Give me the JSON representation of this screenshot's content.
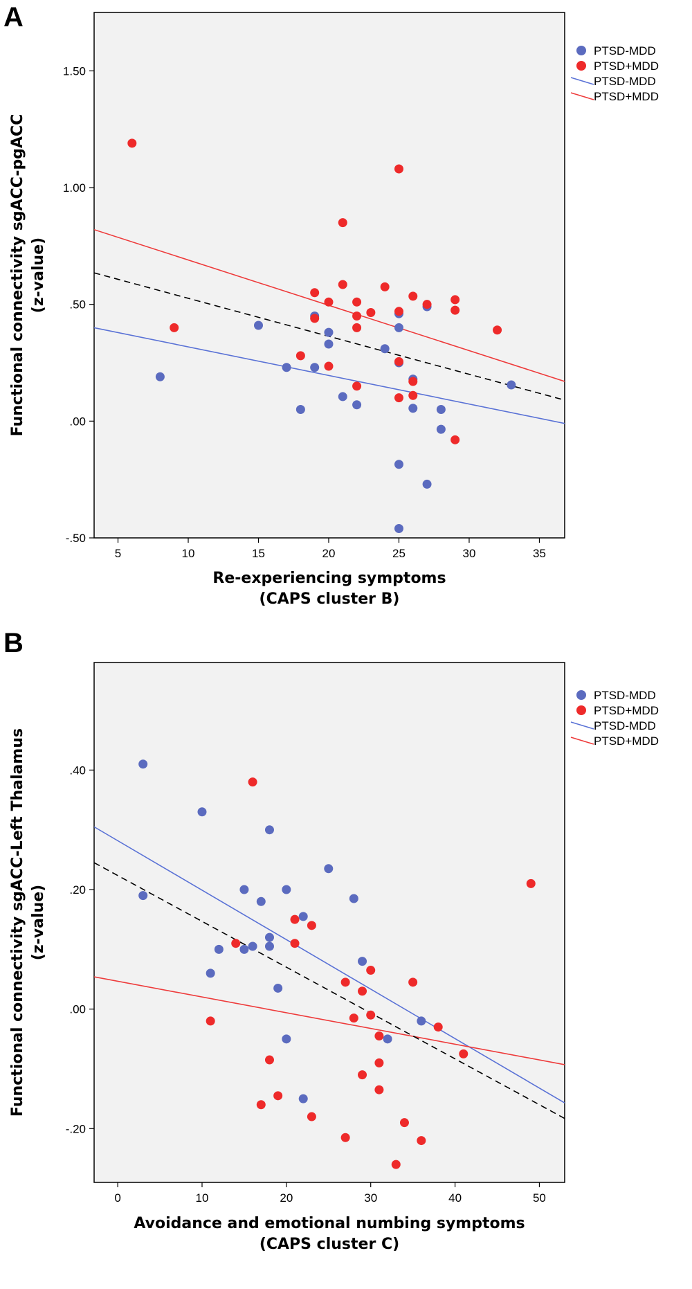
{
  "colors": {
    "blue": "#5b6bbf",
    "red": "#ee2a2a",
    "blue_line": "#5a72d6",
    "red_line": "#ee3b3b",
    "plot_bg": "#f2f2f2",
    "total_line": "#000000"
  },
  "chart_data": [
    {
      "panel": "A",
      "type": "scatter",
      "xlabel": [
        "Re-experiencing symptoms",
        "(CAPS cluster B)"
      ],
      "ylabel": [
        "Functional connectivity sgACC-pgACC",
        "(z-value)"
      ],
      "xlim": [
        3.3,
        36.8
      ],
      "ylim": [
        -0.5,
        1.75
      ],
      "xticks": [
        5,
        10,
        15,
        20,
        25,
        30,
        35
      ],
      "xtick_labels": [
        "5",
        "10",
        "15",
        "20",
        "25",
        "30",
        "35"
      ],
      "yticks": [
        -0.5,
        0,
        0.5,
        1,
        1.5
      ],
      "ytick_labels": [
        "-.50",
        ".00",
        ".50",
        "1.00",
        "1.50"
      ],
      "legend": [
        "PTSD-MDD",
        "PTSD+MDD",
        "PTSD-MDD",
        "PTSD+MDD"
      ],
      "series": [
        {
          "name": "PTSD-MDD",
          "points": [
            [
              8,
              0.19
            ],
            [
              15,
              0.41
            ],
            [
              17,
              0.23
            ],
            [
              18,
              0.05
            ],
            [
              19,
              0.45
            ],
            [
              19,
              0.23
            ],
            [
              20,
              0.38
            ],
            [
              20,
              0.33
            ],
            [
              21,
              0.105
            ],
            [
              22,
              0.07
            ],
            [
              24,
              0.31
            ],
            [
              25,
              0.46
            ],
            [
              25,
              0.4
            ],
            [
              25,
              0.25
            ],
            [
              25,
              -0.185
            ],
            [
              25,
              -0.46
            ],
            [
              26,
              0.18
            ],
            [
              26,
              0.055
            ],
            [
              27,
              0.49
            ],
            [
              27,
              -0.27
            ],
            [
              28,
              0.05
            ],
            [
              28,
              -0.035
            ],
            [
              33,
              0.155
            ]
          ]
        },
        {
          "name": "PTSD+MDD",
          "points": [
            [
              6,
              1.19
            ],
            [
              9,
              0.4
            ],
            [
              18,
              0.28
            ],
            [
              19,
              0.55
            ],
            [
              19,
              0.44
            ],
            [
              20,
              0.51
            ],
            [
              20,
              0.235
            ],
            [
              21,
              0.85
            ],
            [
              21,
              0.585
            ],
            [
              22,
              0.51
            ],
            [
              22,
              0.45
            ],
            [
              22,
              0.4
            ],
            [
              22,
              0.15
            ],
            [
              23,
              0.465
            ],
            [
              24,
              0.575
            ],
            [
              25,
              1.08
            ],
            [
              25,
              0.47
            ],
            [
              25,
              0.255
            ],
            [
              25,
              0.1
            ],
            [
              26,
              0.535
            ],
            [
              26,
              0.17
            ],
            [
              26,
              0.11
            ],
            [
              27,
              0.5
            ],
            [
              29,
              0.52
            ],
            [
              29,
              0.475
            ],
            [
              29,
              -0.08
            ],
            [
              32,
              0.39
            ]
          ]
        }
      ],
      "fit_lines": [
        {
          "name": "PTSD-MDD",
          "x": [
            3.3,
            36.8
          ],
          "y": [
            0.4,
            -0.01
          ]
        },
        {
          "name": "PTSD+MDD",
          "x": [
            3.3,
            36.8
          ],
          "y": [
            0.82,
            0.17
          ]
        },
        {
          "name": "",
          "x": [
            3.3,
            36.8
          ],
          "y": [
            0.635,
            0.09
          ],
          "dashed": true
        }
      ]
    },
    {
      "panel": "B",
      "type": "scatter",
      "xlabel": [
        "Avoidance and emotional numbing symptoms",
        "(CAPS cluster C)"
      ],
      "ylabel": [
        "Functional connectivity sgACC-Left Thalamus",
        "(z-value)"
      ],
      "xlim": [
        -2.8,
        53
      ],
      "ylim": [
        -0.29,
        0.58
      ],
      "xticks": [
        0,
        10,
        20,
        30,
        40,
        50
      ],
      "xtick_labels": [
        "0",
        "10",
        "20",
        "30",
        "40",
        "50"
      ],
      "yticks": [
        -0.2,
        0,
        0.2,
        0.4
      ],
      "ytick_labels": [
        "-.20",
        ".00",
        ".20",
        ".40"
      ],
      "legend": [
        "PTSD-MDD",
        "PTSD+MDD",
        "PTSD-MDD",
        "PTSD+MDD"
      ],
      "series": [
        {
          "name": "PTSD-MDD",
          "points": [
            [
              3,
              0.41
            ],
            [
              3,
              0.19
            ],
            [
              10,
              0.33
            ],
            [
              11,
              0.06
            ],
            [
              12,
              0.1
            ],
            [
              15,
              0.2
            ],
            [
              15,
              0.1
            ],
            [
              16,
              0.105
            ],
            [
              17,
              0.18
            ],
            [
              18,
              0.3
            ],
            [
              18,
              0.12
            ],
            [
              18,
              0.105
            ],
            [
              19,
              0.035
            ],
            [
              20,
              0.2
            ],
            [
              20,
              -0.05
            ],
            [
              22,
              0.155
            ],
            [
              22,
              -0.15
            ],
            [
              25,
              0.235
            ],
            [
              28,
              0.185
            ],
            [
              29,
              0.08
            ],
            [
              32,
              -0.05
            ],
            [
              36,
              -0.02
            ]
          ]
        },
        {
          "name": "PTSD+MDD",
          "points": [
            [
              11,
              -0.02
            ],
            [
              14,
              0.11
            ],
            [
              16,
              0.38
            ],
            [
              17,
              -0.16
            ],
            [
              18,
              -0.085
            ],
            [
              19,
              -0.145
            ],
            [
              21,
              0.15
            ],
            [
              21,
              0.11
            ],
            [
              23,
              0.14
            ],
            [
              23,
              -0.18
            ],
            [
              27,
              0.045
            ],
            [
              27,
              -0.215
            ],
            [
              28,
              -0.015
            ],
            [
              29,
              0.03
            ],
            [
              29,
              -0.11
            ],
            [
              30,
              0.065
            ],
            [
              30,
              -0.01
            ],
            [
              31,
              -0.045
            ],
            [
              31,
              -0.09
            ],
            [
              31,
              -0.135
            ],
            [
              33,
              -0.26
            ],
            [
              34,
              -0.19
            ],
            [
              35,
              0.045
            ],
            [
              36,
              -0.22
            ],
            [
              38,
              -0.03
            ],
            [
              41,
              -0.075
            ],
            [
              49,
              0.21
            ]
          ]
        }
      ],
      "fit_lines": [
        {
          "name": "PTSD-MDD",
          "x": [
            -2.8,
            53
          ],
          "y": [
            0.305,
            -0.157
          ]
        },
        {
          "name": "PTSD+MDD",
          "x": [
            -2.8,
            53
          ],
          "y": [
            0.054,
            -0.093
          ]
        },
        {
          "name": "",
          "x": [
            -2.8,
            53
          ],
          "y": [
            0.245,
            -0.183
          ],
          "dashed": true
        }
      ]
    }
  ]
}
